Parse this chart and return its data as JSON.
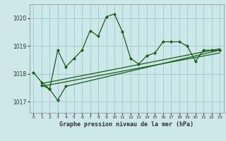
{
  "title": "Graphe pression niveau de la mer (hPa)",
  "bg_color": "#cce8e8",
  "grid_color": "#aacccc",
  "line_color": "#1a5c1a",
  "xlim": [
    -0.5,
    23.5
  ],
  "ylim": [
    1016.6,
    1020.5
  ],
  "yticks": [
    1017,
    1018,
    1019,
    1020
  ],
  "xticks": [
    0,
    1,
    2,
    3,
    4,
    5,
    6,
    7,
    8,
    9,
    10,
    11,
    12,
    13,
    14,
    15,
    16,
    17,
    18,
    19,
    20,
    21,
    22,
    23
  ],
  "series0": {
    "x": [
      0,
      1,
      2,
      3,
      4,
      5,
      6,
      7,
      8,
      9,
      10,
      11,
      12,
      13,
      14,
      15,
      16,
      17,
      18,
      19,
      20,
      21,
      22,
      23
    ],
    "y": [
      1018.05,
      1017.7,
      1017.45,
      1018.85,
      1018.25,
      1018.55,
      1018.85,
      1019.55,
      1019.35,
      1020.05,
      1020.15,
      1019.5,
      1018.55,
      1018.35,
      1018.65,
      1018.75,
      1019.15,
      1019.15,
      1019.15,
      1019.0,
      1018.45,
      1018.85,
      1018.85,
      1018.85
    ]
  },
  "series1": {
    "x": [
      1,
      2,
      3,
      4,
      23
    ],
    "y": [
      1017.6,
      1017.45,
      1017.05,
      1017.55,
      1018.85
    ]
  },
  "series2": {
    "x": [
      1,
      23
    ],
    "y": [
      1017.65,
      1018.9
    ]
  },
  "series3": {
    "x": [
      1,
      23
    ],
    "y": [
      1017.55,
      1018.75
    ]
  }
}
